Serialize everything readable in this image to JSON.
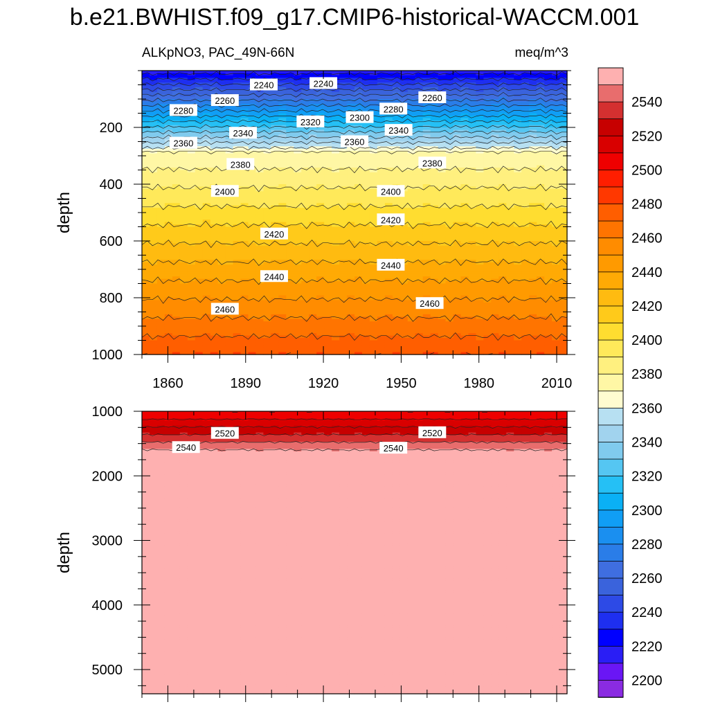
{
  "title": "b.e21.BWHIST.f09_g17.CMIP6-historical-WACCM.001",
  "left_subtitle": "ALKpNO3, PAC_49N-66N",
  "right_subtitle": "meq/m^3",
  "chart_data": {
    "type": "contour",
    "variable": "ALKpNO3",
    "region": "PAC_49N-66N",
    "units": "meq/m^3",
    "x_ticks": [
      "1860",
      "1890",
      "1920",
      "1950",
      "1980",
      "2010"
    ],
    "x_range": [
      1850,
      2014
    ],
    "panels": [
      {
        "name": "upper",
        "ylabel": "depth",
        "y_range": [
          0,
          1000
        ],
        "y_reversed": true,
        "y_ticks": [
          "200",
          "400",
          "600",
          "800",
          "1000"
        ],
        "contour_labels": [
          {
            "text": "2240",
            "year": 1897,
            "depth": 50
          },
          {
            "text": "2240",
            "year": 1920,
            "depth": 45
          },
          {
            "text": "2260",
            "year": 1882,
            "depth": 105
          },
          {
            "text": "2260",
            "year": 1962,
            "depth": 95
          },
          {
            "text": "2280",
            "year": 1866,
            "depth": 140
          },
          {
            "text": "2280",
            "year": 1947,
            "depth": 135
          },
          {
            "text": "2300",
            "year": 1934,
            "depth": 165
          },
          {
            "text": "2320",
            "year": 1915,
            "depth": 180
          },
          {
            "text": "2340",
            "year": 1889,
            "depth": 220
          },
          {
            "text": "2340",
            "year": 1949,
            "depth": 210
          },
          {
            "text": "2360",
            "year": 1866,
            "depth": 255
          },
          {
            "text": "2360",
            "year": 1932,
            "depth": 250
          },
          {
            "text": "2380",
            "year": 1888,
            "depth": 330
          },
          {
            "text": "2380",
            "year": 1962,
            "depth": 325
          },
          {
            "text": "2400",
            "year": 1882,
            "depth": 425
          },
          {
            "text": "2400",
            "year": 1946,
            "depth": 425
          },
          {
            "text": "2420",
            "year": 1901,
            "depth": 575
          },
          {
            "text": "2420",
            "year": 1946,
            "depth": 525
          },
          {
            "text": "2440",
            "year": 1901,
            "depth": 725
          },
          {
            "text": "2440",
            "year": 1946,
            "depth": 685
          },
          {
            "text": "2460",
            "year": 1882,
            "depth": 840
          },
          {
            "text": "2460",
            "year": 1961,
            "depth": 820
          }
        ]
      },
      {
        "name": "lower",
        "ylabel": "depth",
        "y_range": [
          1000,
          5375
        ],
        "y_reversed": true,
        "y_ticks": [
          "1000",
          "2000",
          "3000",
          "4000",
          "5000"
        ],
        "contour_labels": [
          {
            "text": "2520",
            "year": 1882,
            "depth": 1340
          },
          {
            "text": "2520",
            "year": 1962,
            "depth": 1330
          },
          {
            "text": "2540",
            "year": 1867,
            "depth": 1560
          },
          {
            "text": "2540",
            "year": 1947,
            "depth": 1570
          }
        ]
      }
    ],
    "colorbar": {
      "levels": [
        2200,
        2210,
        2220,
        2230,
        2240,
        2250,
        2260,
        2270,
        2280,
        2290,
        2300,
        2310,
        2320,
        2330,
        2340,
        2350,
        2360,
        2370,
        2380,
        2390,
        2400,
        2410,
        2420,
        2430,
        2440,
        2450,
        2460,
        2470,
        2480,
        2490,
        2500,
        2510,
        2520,
        2530,
        2540,
        2550
      ],
      "labels": [
        "2200",
        "2220",
        "2240",
        "2260",
        "2280",
        "2300",
        "2320",
        "2340",
        "2360",
        "2380",
        "2400",
        "2420",
        "2440",
        "2460",
        "2480",
        "2500",
        "2520",
        "2540"
      ],
      "colors": [
        "#8a2be2",
        "#6a16f5",
        "#2a1ef5",
        "#0000ff",
        "#1e2ff0",
        "#2d4ae6",
        "#3a63dc",
        "#3f6ee0",
        "#2a7de8",
        "#1a8ff0",
        "#109ef5",
        "#0ab0f5",
        "#25c0f5",
        "#55c6f2",
        "#80cbee",
        "#a1d3ee",
        "#b7e0f2",
        "#fffcd0",
        "#fff7a5",
        "#fff07f",
        "#ffe95a",
        "#ffdd30",
        "#ffca1a",
        "#ffbb10",
        "#ffaa05",
        "#ff9a00",
        "#ff8c00",
        "#ff7400",
        "#ff5e00",
        "#ff3800",
        "#ff1e00",
        "#ef0000",
        "#d90000",
        "#c70000",
        "#d43030",
        "#e86d6d",
        "#feb0b0"
      ]
    }
  }
}
